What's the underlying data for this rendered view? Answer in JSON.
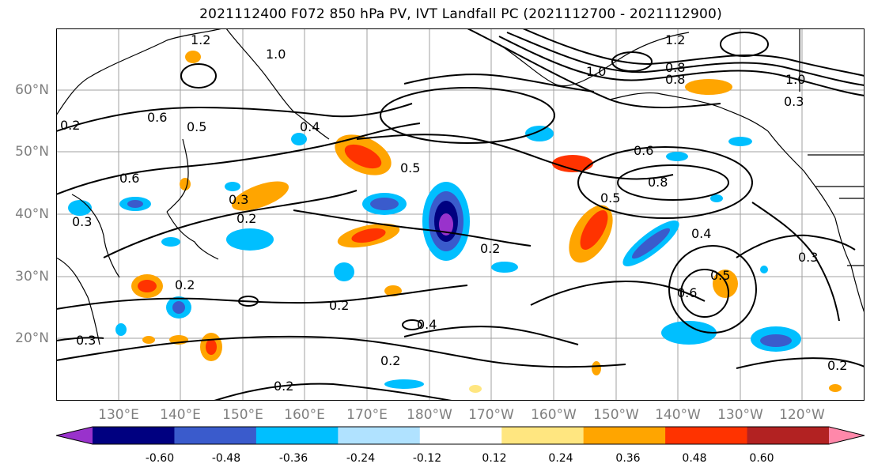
{
  "title": "2021112400 F072 850 hPa PV, IVT Landfall PC (2021112700 - 2021112900)",
  "axes": {
    "lat_labels": [
      "60°N",
      "50°N",
      "40°N",
      "30°N",
      "20°N"
    ],
    "lon_labels": [
      "130°E",
      "140°E",
      "150°E",
      "160°E",
      "170°E",
      "180°W",
      "170°W",
      "160°W",
      "150°W",
      "140°W",
      "130°W",
      "120°W"
    ]
  },
  "colorbar": {
    "ticks": [
      "-0.60",
      "-0.48",
      "-0.36",
      "-0.24",
      "-0.12",
      "0.12",
      "0.24",
      "0.36",
      "0.48",
      "0.60"
    ],
    "colors": [
      "#9932cc",
      "#000080",
      "#3a5bcc",
      "#00bfff",
      "#b0e2ff",
      "#ffffff",
      "#ffe680",
      "#ffa500",
      "#ff3300",
      "#b22222",
      "#ff88aa"
    ]
  },
  "contour_labels": [
    "1.0",
    "1.2",
    "1.0",
    "1.2",
    "0.8",
    "0.6",
    "0.5",
    "0.4",
    "0.5",
    "0.3",
    "0.2",
    "0.2",
    "0.2",
    "0.2",
    "0.4",
    "0.2",
    "0.2",
    "0.6",
    "0.8",
    "0.5",
    "0.4",
    "0.3",
    "0.6",
    "0.5",
    "0.2",
    "0.3",
    "0.2",
    "0.6",
    "0.3",
    "1.0",
    "0.8",
    "0.3"
  ]
}
